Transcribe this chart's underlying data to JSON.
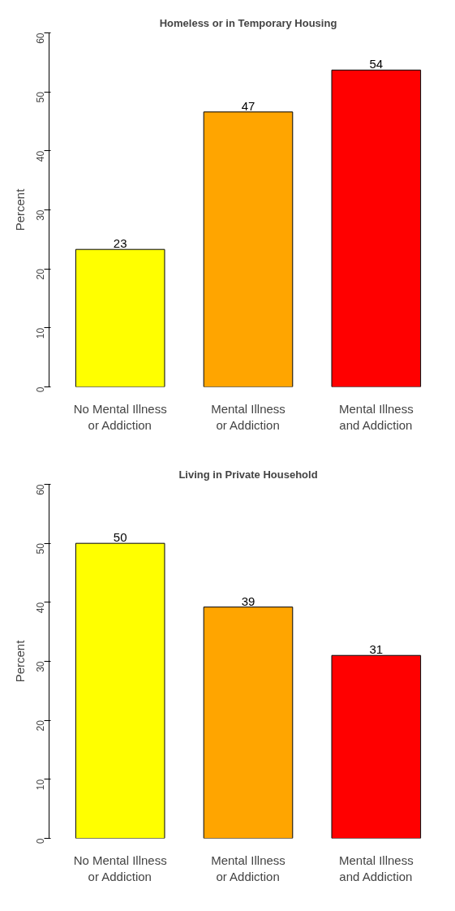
{
  "chart_data": [
    {
      "type": "bar",
      "title": "Homeless or in Temporary Housing",
      "ylabel": "Percent",
      "categories": [
        "No Mental Illness\nor Addiction",
        "Mental Illness\nor Addiction",
        "Mental Illness\nand Addiction"
      ],
      "values": [
        23.3,
        46.6,
        53.7
      ],
      "value_labels": [
        "23",
        "47",
        "54"
      ],
      "colors": [
        "#ffff00",
        "#ffa500",
        "#ff0000"
      ],
      "ylim": [
        0,
        60
      ],
      "yticks": [
        0,
        10,
        20,
        30,
        40,
        50,
        60
      ],
      "grid": false
    },
    {
      "type": "bar",
      "title": "Living in Private Household",
      "ylabel": "Percent",
      "categories": [
        "No Mental Illness\nor Addiction",
        "Mental Illness\nor Addiction",
        "Mental Illness\nand Addiction"
      ],
      "values": [
        50.0,
        39.2,
        31.0
      ],
      "value_labels": [
        "50",
        "39",
        "31"
      ],
      "colors": [
        "#ffff00",
        "#ffa500",
        "#ff0000"
      ],
      "ylim": [
        0,
        60
      ],
      "yticks": [
        0,
        10,
        20,
        30,
        40,
        50,
        60
      ],
      "grid": false
    }
  ]
}
